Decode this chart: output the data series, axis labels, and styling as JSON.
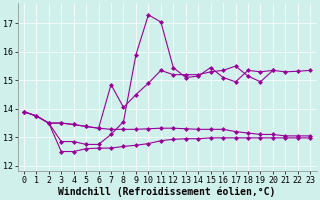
{
  "background_color": "#d0f0ec",
  "line_color": "#990099",
  "xlabel": "Windchill (Refroidissement éolien,°C)",
  "xlabel_fontsize": 7,
  "tick_fontsize": 6,
  "xlim": [
    -0.5,
    23.5
  ],
  "ylim": [
    11.8,
    17.7
  ],
  "yticks": [
    12,
    13,
    14,
    15,
    16,
    17
  ],
  "xticks": [
    0,
    1,
    2,
    3,
    4,
    5,
    6,
    7,
    8,
    9,
    10,
    11,
    12,
    13,
    14,
    15,
    16,
    17,
    18,
    19,
    20,
    21,
    22,
    23
  ],
  "lines": [
    {
      "x": [
        0,
        1,
        2,
        3,
        4,
        5,
        6,
        7,
        8,
        9,
        10,
        11,
        12,
        13,
        14,
        15,
        16,
        17,
        18,
        19,
        20
      ],
      "y": [
        13.9,
        13.75,
        13.5,
        12.85,
        12.85,
        12.75,
        12.75,
        13.1,
        13.55,
        15.9,
        17.3,
        17.05,
        15.45,
        15.1,
        15.15,
        15.45,
        15.1,
        14.95,
        15.35,
        15.3,
        15.35
      ]
    },
    {
      "x": [
        0,
        1,
        2,
        3,
        4,
        5,
        6,
        7,
        8,
        9,
        10,
        11,
        12,
        13,
        14,
        15,
        16,
        17,
        18,
        19,
        20,
        21,
        22,
        23
      ],
      "y": [
        13.9,
        13.75,
        13.5,
        13.5,
        13.45,
        13.38,
        13.32,
        14.85,
        14.05,
        14.5,
        14.9,
        15.35,
        15.2,
        15.2,
        15.2,
        15.3,
        15.35,
        15.5,
        15.15,
        14.95,
        15.35,
        15.3,
        15.32,
        15.35
      ]
    },
    {
      "x": [
        0,
        1,
        2,
        3,
        4,
        5,
        6,
        7,
        8,
        9,
        10,
        11,
        12,
        13,
        14,
        15,
        16,
        17,
        18,
        19,
        20,
        21,
        22,
        23
      ],
      "y": [
        13.9,
        13.75,
        13.5,
        13.5,
        13.45,
        13.38,
        13.32,
        13.28,
        13.28,
        13.28,
        13.3,
        13.32,
        13.32,
        13.3,
        13.28,
        13.28,
        13.28,
        13.2,
        13.15,
        13.1,
        13.1,
        13.05,
        13.05,
        13.05
      ]
    },
    {
      "x": [
        2,
        3,
        4,
        5,
        6,
        7,
        8,
        9,
        10,
        11,
        12,
        13,
        14,
        15,
        16,
        17,
        18,
        19,
        20,
        21,
        22,
        23
      ],
      "y": [
        13.5,
        12.5,
        12.5,
        12.6,
        12.62,
        12.62,
        12.68,
        12.72,
        12.78,
        12.88,
        12.93,
        12.95,
        12.95,
        12.98,
        12.98,
        12.98,
        12.98,
        12.98,
        12.98,
        12.98,
        12.98,
        12.98
      ]
    }
  ]
}
